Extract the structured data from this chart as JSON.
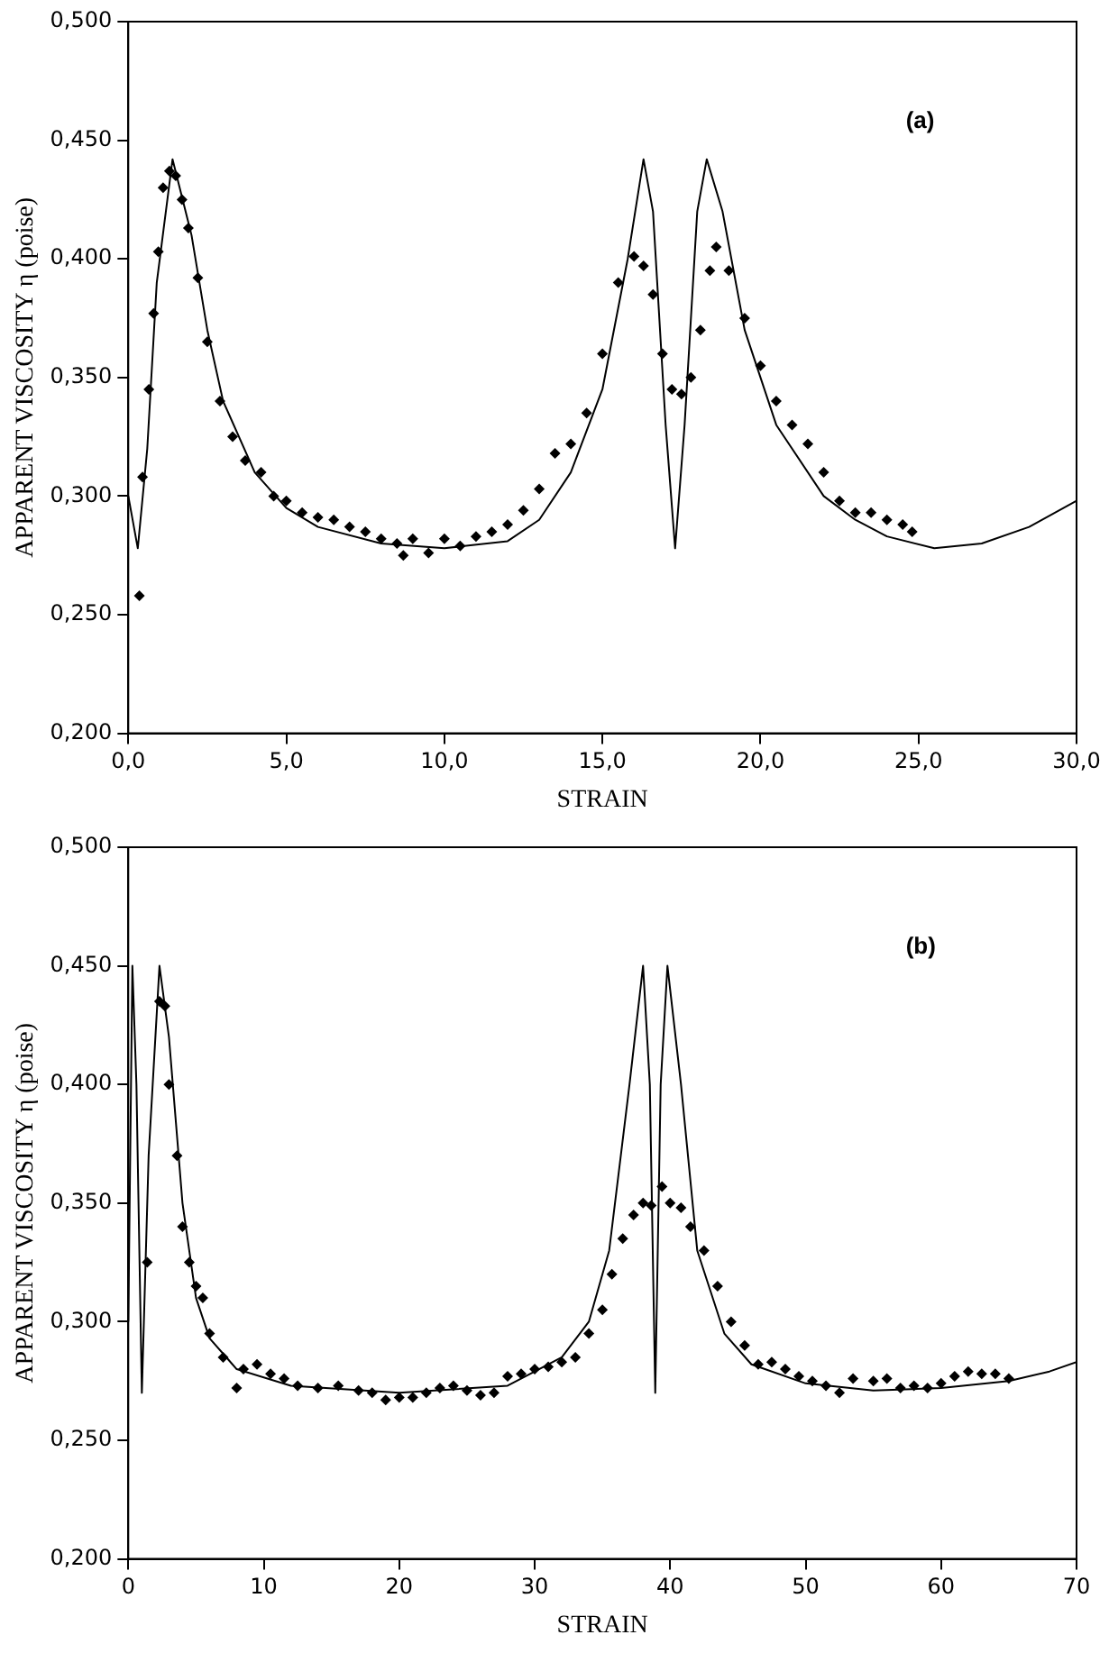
{
  "chart_data": [
    {
      "type": "scatter",
      "xlabel": "STRAIN",
      "ylabel": "APPARENT VISCOSITY η (poise)",
      "annotations": [
        "(a)"
      ],
      "grid": false,
      "legend": false,
      "xlim": [
        0,
        30
      ],
      "xticks": [
        {
          "value": 0,
          "label": "0,0"
        },
        {
          "value": 5,
          "label": "5,0"
        },
        {
          "value": 10,
          "label": "10,0"
        },
        {
          "value": 15,
          "label": "15,0"
        },
        {
          "value": 20,
          "label": "20,0"
        },
        {
          "value": 25,
          "label": "25,0"
        },
        {
          "value": 30,
          "label": "30,0"
        }
      ],
      "ylim": [
        0.2,
        0.5
      ],
      "yticks": [
        {
          "value": 0.2,
          "label": "0,200"
        },
        {
          "value": 0.25,
          "label": "0,250"
        },
        {
          "value": 0.3,
          "label": "0,300"
        },
        {
          "value": 0.35,
          "label": "0,350"
        },
        {
          "value": 0.4,
          "label": "0,400"
        },
        {
          "value": 0.45,
          "label": "0,450"
        },
        {
          "value": 0.5,
          "label": "0,500"
        }
      ],
      "series": [
        {
          "type": "line",
          "color": "#000000",
          "marker": "none",
          "line_style": "solid",
          "x": [
            0,
            0.3,
            0.6,
            0.9,
            1.4,
            2.0,
            2.5,
            3,
            4,
            5,
            6,
            8,
            10,
            12,
            13,
            14,
            15,
            15.8,
            16.3,
            16.6,
            17.0,
            17.3,
            17.6,
            18.0,
            18.3,
            18.8,
            19.5,
            20.5,
            22,
            23,
            24,
            25.5,
            27,
            28.5,
            30
          ],
          "values": [
            0.3,
            0.278,
            0.32,
            0.39,
            0.442,
            0.41,
            0.37,
            0.34,
            0.31,
            0.295,
            0.287,
            0.28,
            0.278,
            0.281,
            0.29,
            0.31,
            0.345,
            0.4,
            0.442,
            0.42,
            0.33,
            0.278,
            0.33,
            0.42,
            0.442,
            0.42,
            0.37,
            0.33,
            0.3,
            0.29,
            0.283,
            0.278,
            0.28,
            0.287,
            0.298
          ]
        },
        {
          "type": "scatter",
          "color": "#000000",
          "marker": "diamond",
          "x": [
            0.35,
            0.45,
            0.65,
            0.8,
            0.95,
            1.1,
            1.3,
            1.5,
            1.7,
            1.9,
            2.2,
            2.5,
            2.9,
            3.3,
            3.7,
            4.2,
            4.6,
            5,
            5.5,
            6,
            6.5,
            7,
            7.5,
            8,
            8.5,
            8.7,
            9,
            9.5,
            10,
            10.5,
            11,
            11.5,
            12,
            12.5,
            13,
            13.5,
            14,
            14.5,
            15,
            15.5,
            16,
            16.3,
            16.6,
            16.9,
            17.2,
            17.5,
            17.8,
            18.1,
            18.4,
            18.6,
            19,
            19.5,
            20,
            20.5,
            21,
            21.5,
            22,
            22.5,
            23,
            23.5,
            24,
            24.5,
            24.8
          ],
          "values": [
            0.258,
            0.308,
            0.345,
            0.377,
            0.403,
            0.43,
            0.437,
            0.435,
            0.425,
            0.413,
            0.392,
            0.365,
            0.34,
            0.325,
            0.315,
            0.31,
            0.3,
            0.298,
            0.293,
            0.291,
            0.29,
            0.287,
            0.285,
            0.282,
            0.28,
            0.275,
            0.282,
            0.276,
            0.282,
            0.279,
            0.283,
            0.285,
            0.288,
            0.294,
            0.303,
            0.318,
            0.322,
            0.335,
            0.36,
            0.39,
            0.401,
            0.397,
            0.385,
            0.36,
            0.345,
            0.343,
            0.35,
            0.37,
            0.395,
            0.405,
            0.395,
            0.375,
            0.355,
            0.34,
            0.33,
            0.322,
            0.31,
            0.298,
            0.293,
            0.293,
            0.29,
            0.288,
            0.285
          ]
        }
      ]
    },
    {
      "type": "scatter",
      "xlabel": "STRAIN",
      "ylabel": "APPARENT VISCOSITY η (poise)",
      "annotations": [
        "(b)"
      ],
      "grid": false,
      "legend": false,
      "xlim": [
        0,
        70
      ],
      "xticks": [
        0,
        10,
        20,
        30,
        40,
        50,
        60,
        70
      ],
      "ylim": [
        0.2,
        0.5
      ],
      "yticks": [
        {
          "value": 0.2,
          "label": "0,200"
        },
        {
          "value": 0.25,
          "label": "0,250"
        },
        {
          "value": 0.3,
          "label": "0,300"
        },
        {
          "value": 0.35,
          "label": "0,350"
        },
        {
          "value": 0.4,
          "label": "0,400"
        },
        {
          "value": 0.45,
          "label": "0,450"
        },
        {
          "value": 0.5,
          "label": "0,500"
        }
      ],
      "series": [
        {
          "type": "line",
          "color": "#000000",
          "marker": "none",
          "line_style": "solid",
          "x": [
            0,
            0.3,
            0.6,
            1.0,
            1.5,
            2.3,
            3,
            4,
            5,
            6,
            8,
            12,
            20,
            28,
            32,
            34,
            35.5,
            37,
            38,
            38.5,
            38.9,
            39.3,
            39.8,
            40.8,
            42,
            44,
            46,
            50,
            55,
            60,
            65,
            68,
            70
          ],
          "values": [
            0.3,
            0.45,
            0.4,
            0.27,
            0.37,
            0.45,
            0.42,
            0.35,
            0.31,
            0.293,
            0.28,
            0.273,
            0.27,
            0.273,
            0.285,
            0.3,
            0.33,
            0.4,
            0.45,
            0.4,
            0.27,
            0.4,
            0.45,
            0.4,
            0.33,
            0.295,
            0.282,
            0.274,
            0.271,
            0.272,
            0.275,
            0.279,
            0.283
          ]
        },
        {
          "type": "scatter",
          "color": "#000000",
          "marker": "diamond",
          "x": [
            1.4,
            2.3,
            2.7,
            3,
            3.6,
            4,
            4.5,
            5,
            5.5,
            6,
            7,
            8,
            8.5,
            9.5,
            10.5,
            11.5,
            12.5,
            14,
            15.5,
            17,
            18,
            19,
            20,
            21,
            22,
            23,
            24,
            25,
            26,
            27,
            28,
            29,
            30,
            31,
            32,
            33,
            34,
            35,
            35.7,
            36.5,
            37.3,
            38,
            38.6,
            39.4,
            40,
            40.8,
            41.5,
            42.5,
            43.5,
            44.5,
            45.5,
            46.5,
            47.5,
            48.5,
            49.5,
            50.5,
            51.5,
            52.5,
            53.5,
            55,
            56,
            57,
            58,
            59,
            60,
            61,
            62,
            63,
            64,
            65
          ],
          "values": [
            0.325,
            0.435,
            0.433,
            0.4,
            0.37,
            0.34,
            0.325,
            0.315,
            0.31,
            0.295,
            0.285,
            0.272,
            0.28,
            0.282,
            0.278,
            0.276,
            0.273,
            0.272,
            0.273,
            0.271,
            0.27,
            0.267,
            0.268,
            0.268,
            0.27,
            0.272,
            0.273,
            0.271,
            0.269,
            0.27,
            0.277,
            0.278,
            0.28,
            0.281,
            0.283,
            0.285,
            0.295,
            0.305,
            0.32,
            0.335,
            0.345,
            0.35,
            0.349,
            0.357,
            0.35,
            0.348,
            0.34,
            0.33,
            0.315,
            0.3,
            0.29,
            0.282,
            0.283,
            0.28,
            0.277,
            0.275,
            0.273,
            0.27,
            0.276,
            0.275,
            0.276,
            0.272,
            0.273,
            0.272,
            0.274,
            0.277,
            0.279,
            0.278,
            0.278,
            0.276
          ]
        }
      ]
    }
  ]
}
